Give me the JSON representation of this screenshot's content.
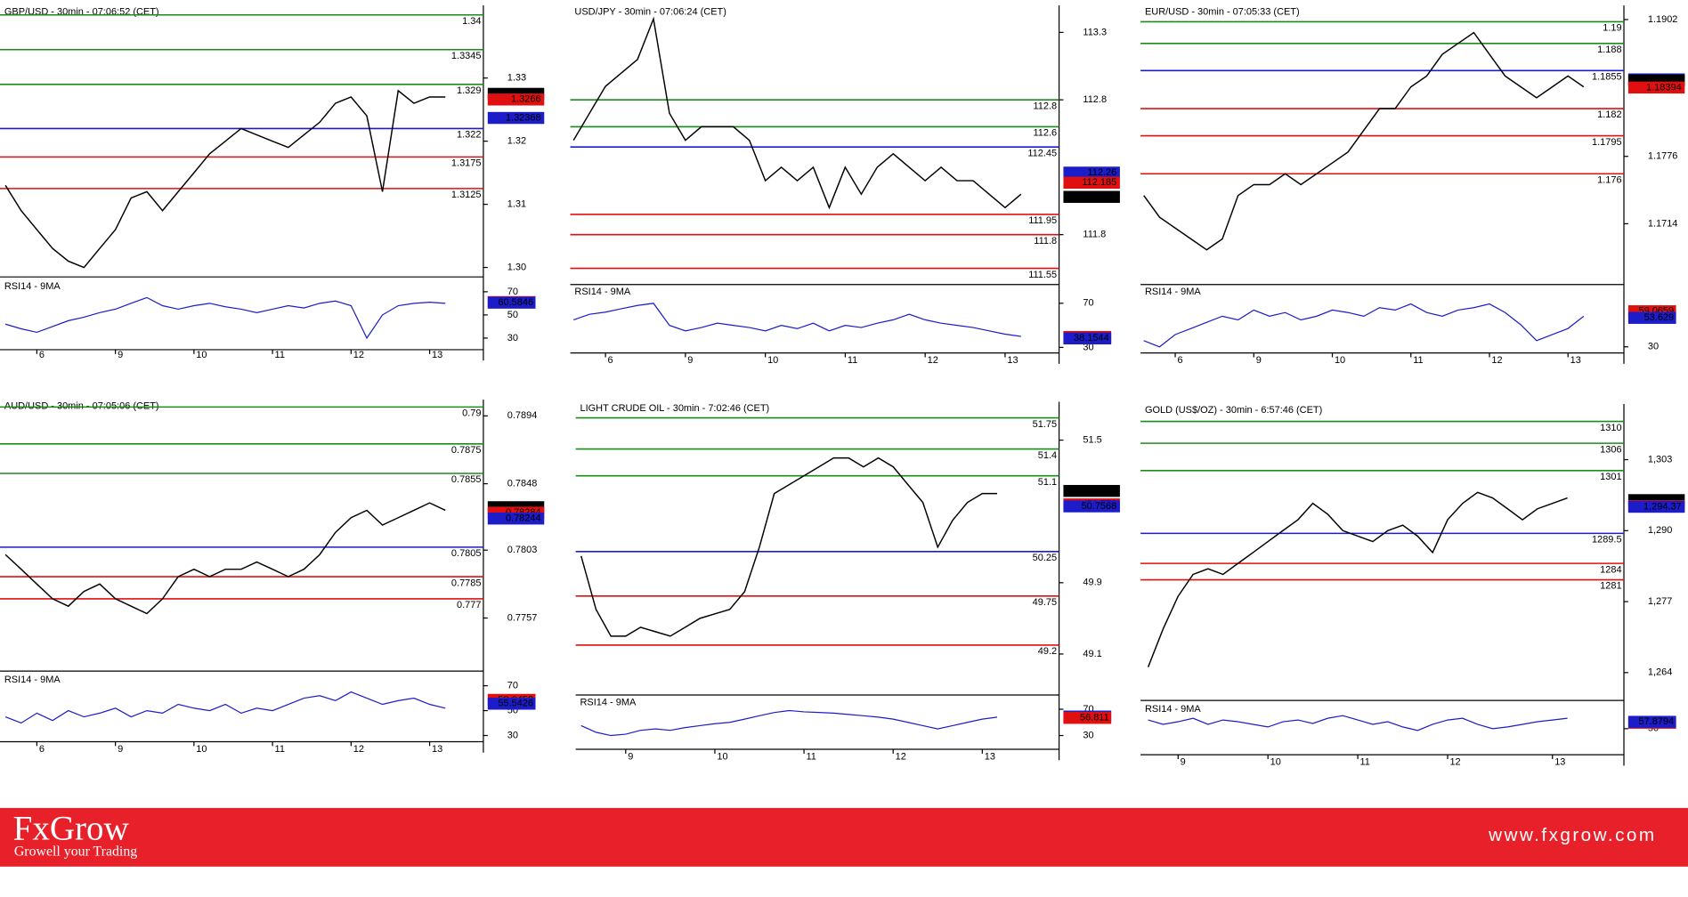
{
  "chart_data": [
    {
      "type": "line",
      "title": "GBP/USD - 30min - 07:06:52 (CET)",
      "color": "#000000",
      "categories": [
        null,
        null,
        "6",
        null,
        null,
        null,
        null,
        "9",
        null,
        null,
        null,
        null,
        "10",
        null,
        null,
        null,
        null,
        "11",
        null,
        null,
        null,
        null,
        "12",
        null,
        null,
        null,
        null,
        "13",
        null
      ],
      "values": [
        1.313,
        1.309,
        1.306,
        1.303,
        1.301,
        1.3,
        1.303,
        1.306,
        1.311,
        1.312,
        1.309,
        1.312,
        1.315,
        1.318,
        1.32,
        1.322,
        1.321,
        1.32,
        1.319,
        1.321,
        1.323,
        1.326,
        1.327,
        1.324,
        1.312,
        1.328,
        1.326,
        1.327,
        1.327
      ],
      "ylim": [
        1.2985,
        1.3415
      ],
      "yticks": [
        {
          "value": 1.3,
          "label": "1.30"
        },
        1.31,
        1.32,
        1.33
      ],
      "levels": [
        {
          "value": 1.34,
          "color": "#1a8c1a"
        },
        {
          "value": 1.3345,
          "color": "#1a8c1a"
        },
        {
          "value": 1.329,
          "color": "#1a8c1a"
        },
        {
          "value": 1.322,
          "color": "#1c1cc8"
        },
        {
          "value": 1.3175,
          "color": "#e01010"
        },
        {
          "value": 1.3125,
          "color": "#e01010"
        }
      ],
      "price_labels": [
        {
          "value": 1.3275,
          "color": "#000000"
        },
        {
          "value": 1.3266,
          "color": "#e01010"
        },
        {
          "value": 1.32368,
          "color": "#1c1cc8"
        }
      ],
      "rsi": {
        "title": "RSI14 - 9MA",
        "color": "#1c1cc8",
        "ylim": [
          20,
          80
        ],
        "yticks": [
          30,
          50,
          70
        ],
        "values": [
          42,
          38,
          35,
          40,
          45,
          48,
          52,
          55,
          60,
          65,
          58,
          55,
          58,
          60,
          57,
          55,
          52,
          55,
          58,
          56,
          60,
          62,
          58,
          30,
          50,
          58,
          60,
          61,
          60
        ],
        "labels": [
          {
            "value": 61.0747,
            "color": "#e01010"
          },
          {
            "value": 60.5846,
            "color": "#1c1cc8"
          }
        ]
      }
    },
    {
      "type": "line",
      "title": "USD/JPY - 30min - 07:06:24 (CET)",
      "color": "#000000",
      "categories": [
        null,
        null,
        "6",
        null,
        null,
        null,
        null,
        "9",
        null,
        null,
        null,
        null,
        "10",
        null,
        null,
        null,
        null,
        "11",
        null,
        null,
        null,
        null,
        "12",
        null,
        null,
        null,
        null,
        "13",
        null
      ],
      "values": [
        112.5,
        112.7,
        112.9,
        113.0,
        113.1,
        113.4,
        112.7,
        112.5,
        112.6,
        112.6,
        112.6,
        112.5,
        112.2,
        112.3,
        112.2,
        112.3,
        112.0,
        112.3,
        112.1,
        112.3,
        112.4,
        112.3,
        112.2,
        112.3,
        112.2,
        112.2,
        112.1,
        112.0,
        112.1
      ],
      "ylim": [
        111.43,
        113.5
      ],
      "yticks": [
        111.8,
        112.8,
        113.3
      ],
      "levels": [
        {
          "value": 112.8,
          "color": "#1a8c1a"
        },
        {
          "value": 112.6,
          "color": "#1a8c1a"
        },
        {
          "value": 112.45,
          "color": "#1c1cc8"
        },
        {
          "value": 111.95,
          "color": "#e01010"
        },
        {
          "value": 111.8,
          "color": "#e01010"
        },
        {
          "value": 111.55,
          "color": "#e01010"
        }
      ],
      "price_labels": [
        {
          "value": 112.26,
          "color": "#1c1cc8"
        },
        {
          "value": 112.185,
          "color": "#e01010"
        },
        {
          "value": 112.08,
          "color": "#000000"
        }
      ],
      "rsi": {
        "title": "RSI14 - 9MA",
        "color": "#1c1cc8",
        "ylim": [
          25,
          86
        ],
        "yticks": [
          30,
          70
        ],
        "values": [
          55,
          60,
          62,
          65,
          68,
          70,
          50,
          45,
          48,
          52,
          50,
          48,
          45,
          50,
          47,
          52,
          45,
          50,
          48,
          52,
          55,
          60,
          55,
          52,
          50,
          48,
          45,
          42,
          40
        ],
        "labels": [
          {
            "value": 39.4893,
            "color": "#e01010"
          },
          {
            "value": 38.1544,
            "color": "#1c1cc8"
          }
        ]
      }
    },
    {
      "type": "line",
      "title": "EUR/USD - 30min - 07:05:33 (CET)",
      "color": "#000000",
      "categories": [
        null,
        null,
        "6",
        null,
        null,
        null,
        null,
        "9",
        null,
        null,
        null,
        null,
        "10",
        null,
        null,
        null,
        null,
        "11",
        null,
        null,
        null,
        null,
        "12",
        null,
        null,
        null,
        null,
        "13",
        null
      ],
      "values": [
        1.174,
        1.172,
        1.171,
        1.17,
        1.169,
        1.17,
        1.174,
        1.175,
        1.175,
        1.176,
        1.175,
        1.176,
        1.177,
        1.178,
        1.18,
        1.182,
        1.182,
        1.184,
        1.185,
        1.187,
        1.188,
        1.189,
        1.187,
        1.185,
        1.184,
        1.183,
        1.184,
        1.185,
        1.184
      ],
      "ylim": [
        1.1658,
        1.1915
      ],
      "yticks": [
        1.1714,
        1.1776,
        1.1902
      ],
      "levels": [
        {
          "value": 1.19,
          "color": "#1a8c1a"
        },
        {
          "value": 1.188,
          "color": "#1a8c1a"
        },
        {
          "value": 1.1855,
          "color": "#1c1cc8"
        },
        {
          "value": 1.182,
          "color": "#e01010"
        },
        {
          "value": 1.1795,
          "color": "#e01010"
        },
        {
          "value": 1.176,
          "color": "#e01010"
        }
      ],
      "price_labels": [
        {
          "value": 1.18469,
          "color": "#1c1cc8"
        },
        {
          "value": 1.18459,
          "color": "#000000"
        },
        {
          "value": 1.18394,
          "color": "#e01010"
        }
      ],
      "rsi": {
        "title": "RSI14 - 9MA",
        "color": "#1c1cc8",
        "ylim": [
          25,
          80
        ],
        "yticks": [
          30
        ],
        "values": [
          35,
          30,
          40,
          45,
          50,
          55,
          52,
          60,
          55,
          58,
          52,
          55,
          60,
          58,
          55,
          62,
          60,
          65,
          58,
          55,
          60,
          62,
          65,
          58,
          48,
          35,
          40,
          45,
          55
        ],
        "labels": [
          {
            "value": 59.0659,
            "color": "#e01010"
          },
          {
            "value": 53.629,
            "color": "#1c1cc8"
          }
        ]
      }
    },
    {
      "type": "line",
      "title": "AUD/USD - 30min - 07:05:06 (CET)",
      "color": "#000000",
      "categories": [
        null,
        null,
        "6",
        null,
        null,
        null,
        null,
        "9",
        null,
        null,
        null,
        null,
        "10",
        null,
        null,
        null,
        null,
        "11",
        null,
        null,
        null,
        null,
        "12",
        null,
        null,
        null,
        null,
        "13",
        null
      ],
      "values": [
        0.78,
        0.779,
        0.778,
        0.777,
        0.7765,
        0.7775,
        0.778,
        0.777,
        0.7765,
        0.776,
        0.777,
        0.7785,
        0.779,
        0.7785,
        0.779,
        0.779,
        0.7795,
        0.779,
        0.7785,
        0.779,
        0.78,
        0.7815,
        0.7825,
        0.783,
        0.782,
        0.7825,
        0.783,
        0.7835,
        0.783
      ],
      "ylim": [
        0.7721,
        0.7905
      ],
      "yticks": [
        0.7757,
        0.7803,
        0.7848,
        0.7894
      ],
      "levels": [
        {
          "value": 0.79,
          "color": "#1a8c1a"
        },
        {
          "value": 0.7875,
          "color": "#1a8c1a"
        },
        {
          "value": 0.7855,
          "color": "#1a8c1a"
        },
        {
          "value": 0.7805,
          "color": "#1c1cc8"
        },
        {
          "value": 0.7785,
          "color": "#e01010"
        },
        {
          "value": 0.777,
          "color": "#e01010"
        }
      ],
      "price_labels": [
        {
          "value": 0.78321,
          "color": "#000000"
        },
        {
          "value": 0.78284,
          "color": "#e01010"
        },
        {
          "value": 0.78244,
          "color": "#1c1cc8"
        }
      ],
      "rsi": {
        "title": "RSI14 - 9MA",
        "color": "#1c1cc8",
        "ylim": [
          25,
          80
        ],
        "yticks": [
          30,
          50,
          70
        ],
        "values": [
          45,
          40,
          48,
          42,
          50,
          45,
          48,
          52,
          45,
          50,
          48,
          55,
          52,
          50,
          55,
          48,
          52,
          50,
          55,
          60,
          62,
          58,
          65,
          60,
          55,
          58,
          60,
          55,
          52
        ],
        "labels": [
          {
            "value": 58.6452,
            "color": "#e01010"
          },
          {
            "value": 55.5426,
            "color": "#1c1cc8"
          }
        ]
      }
    },
    {
      "type": "line",
      "title": "LIGHT CRUDE OIL - 30min - 7:02:46 (CET)",
      "color": "#000000",
      "categories": [
        null,
        null,
        null,
        "9",
        null,
        null,
        null,
        null,
        null,
        "10",
        null,
        null,
        null,
        null,
        null,
        "11",
        null,
        null,
        null,
        null,
        null,
        "12",
        null,
        null,
        null,
        null,
        null,
        "13",
        null
      ],
      "values": [
        50.2,
        49.6,
        49.3,
        49.3,
        49.4,
        49.35,
        49.3,
        49.4,
        49.5,
        49.55,
        49.6,
        49.8,
        50.3,
        50.9,
        51.0,
        51.1,
        51.2,
        51.3,
        51.3,
        51.2,
        51.3,
        51.2,
        51.0,
        50.8,
        50.3,
        50.6,
        50.8,
        50.9,
        50.9
      ],
      "ylim": [
        48.64,
        51.93
      ],
      "yticks": [
        49.1,
        49.9,
        51.5
      ],
      "levels": [
        {
          "value": 51.75,
          "color": "#1a8c1a"
        },
        {
          "value": 51.4,
          "color": "#1a8c1a"
        },
        {
          "value": 51.1,
          "color": "#1a8c1a"
        },
        {
          "value": 50.25,
          "color": "#1c1cc8"
        },
        {
          "value": 49.75,
          "color": "#e01010"
        },
        {
          "value": 49.2,
          "color": "#e01010"
        }
      ],
      "price_labels": [
        {
          "value": 50.93,
          "color": "#000000"
        },
        {
          "value": 50.779,
          "color": "#e01010"
        },
        {
          "value": 50.7568,
          "color": "#1c1cc8"
        }
      ],
      "rsi": {
        "title": "RSI14 - 9MA",
        "color": "#1c1cc8",
        "ylim": [
          9,
          90
        ],
        "yticks": [
          30,
          70
        ],
        "values": [
          45,
          35,
          30,
          32,
          38,
          40,
          38,
          42,
          45,
          48,
          50,
          55,
          60,
          65,
          68,
          66,
          65,
          64,
          62,
          60,
          58,
          55,
          50,
          45,
          40,
          45,
          50,
          55,
          58
        ],
        "labels": [
          {
            "value": 58.8372,
            "color": "#1c1cc8"
          },
          {
            "value": 56.811,
            "color": "#e01010"
          }
        ]
      }
    },
    {
      "type": "line",
      "title": "GOLD (US$/OZ) - 30min - 6:57:46 (CET)",
      "color": "#000000",
      "categories": [
        null,
        null,
        "9",
        null,
        null,
        null,
        null,
        null,
        "10",
        null,
        null,
        null,
        null,
        null,
        "11",
        null,
        null,
        null,
        null,
        null,
        "12",
        null,
        null,
        null,
        null,
        null,
        null,
        "13",
        null
      ],
      "values": [
        1265,
        1272,
        1278,
        1282,
        1283,
        1282,
        1284,
        1286,
        1288,
        1290,
        1292,
        1295,
        1293,
        1290,
        1289,
        1288,
        1290,
        1291,
        1289,
        1286,
        1292,
        1295,
        1297,
        1296,
        1294,
        1292,
        1294,
        1295,
        1296
      ],
      "ylim": [
        1258.9,
        1313.2
      ],
      "yticks": [
        {
          "value": 1264,
          "label": "1,264"
        },
        {
          "value": 1277,
          "label": "1,277"
        },
        {
          "value": 1290,
          "label": "1,290"
        },
        {
          "value": 1303,
          "label": "1,303"
        }
      ],
      "levels": [
        {
          "value": 1310,
          "color": "#1a8c1a"
        },
        {
          "value": 1306,
          "color": "#1a8c1a"
        },
        {
          "value": 1301,
          "color": "#1a8c1a"
        },
        {
          "value": 1289.5,
          "color": "#1c1cc8"
        },
        {
          "value": 1284,
          "color": "#e01010"
        },
        {
          "value": 1281,
          "color": "#e01010"
        }
      ],
      "price_labels": [
        {
          "value": 1295.59,
          "label": "1,295.59",
          "color": "#000000"
        },
        {
          "value": 1294.5,
          "label": "1,294.5",
          "color": "#e01010"
        },
        {
          "value": 1294.37,
          "label": "1,294.37",
          "color": "#1c1cc8"
        }
      ],
      "rsi": {
        "title": "RSI14 - 9MA",
        "color": "#1c1cc8",
        "ylim": [
          20,
          80
        ],
        "yticks": [
          50
        ],
        "values": [
          60,
          55,
          58,
          62,
          55,
          60,
          58,
          55,
          52,
          58,
          60,
          56,
          62,
          65,
          60,
          55,
          58,
          52,
          48,
          55,
          60,
          62,
          55,
          50,
          52,
          55,
          58,
          60,
          62
        ],
        "labels": [
          {
            "value": 56.8281,
            "color": "#e01010"
          },
          {
            "value": 57.8794,
            "color": "#1c1cc8"
          }
        ]
      }
    }
  ],
  "footer": {
    "brand": "FxGrow",
    "tagline": "Growell your Trading",
    "url": "www.fxgrow.com"
  }
}
